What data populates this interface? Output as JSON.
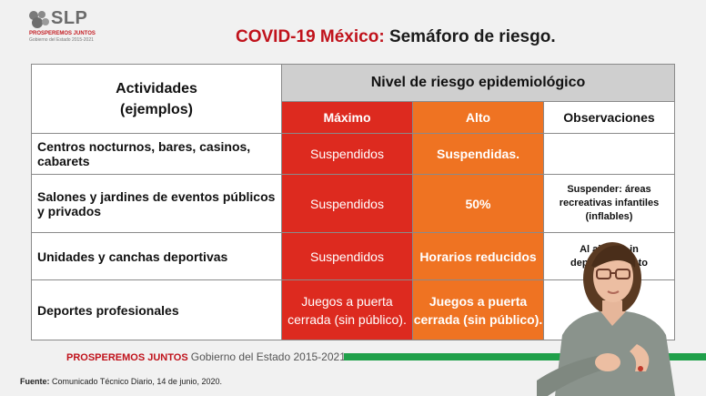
{
  "logo": {
    "text": "SLP",
    "line1": "PROSPEREMOS JUNTOS",
    "line2": "Gobierno del Estado 2015-2021"
  },
  "title": {
    "prefix": "COVID-19 México:",
    "main": "Semáforo de riesgo."
  },
  "table": {
    "header_activities_1": "Actividades",
    "header_activities_2": "(ejemplos)",
    "header_level": "Nivel de riesgo epidemiológico",
    "col_max": "Máximo",
    "col_alto": "Alto",
    "col_obs": "Observaciones",
    "rows": [
      {
        "activity": "Centros nocturnos, bares, casinos, cabarets",
        "max": "Suspendidos",
        "alto": "Suspendidas.",
        "obs": ""
      },
      {
        "activity": "Salones y jardines de eventos públicos y privados",
        "max": "Suspendidos",
        "alto": "50%",
        "obs": "Suspender: áreas recreativas infantiles (inflables)"
      },
      {
        "activity": "Unidades y canchas deportivas",
        "max": "Suspendidos",
        "alto": "Horarios reducidos",
        "obs_a": "Al air",
        "obs_b": "in",
        "obs_c": "deporte",
        "obs_d": "nto"
      },
      {
        "activity": "Deportes profesionales",
        "max": "Juegos a puerta cerrada (sin público).",
        "alto": "Juegos a puerta cerrada (sin público).",
        "obs": ""
      }
    ]
  },
  "footer": {
    "brand_bold": "PROSPEREMOS JUNTOS",
    "brand_rest": "Gobierno del Estado 2015-2021",
    "source_label": "Fuente:",
    "source_text": "Comunicado Técnico Diario, 14 de junio, 2020."
  },
  "colors": {
    "red": "#dd2a1f",
    "orange": "#ef7322",
    "title_red": "#c0121b",
    "green": "#20a04a"
  }
}
